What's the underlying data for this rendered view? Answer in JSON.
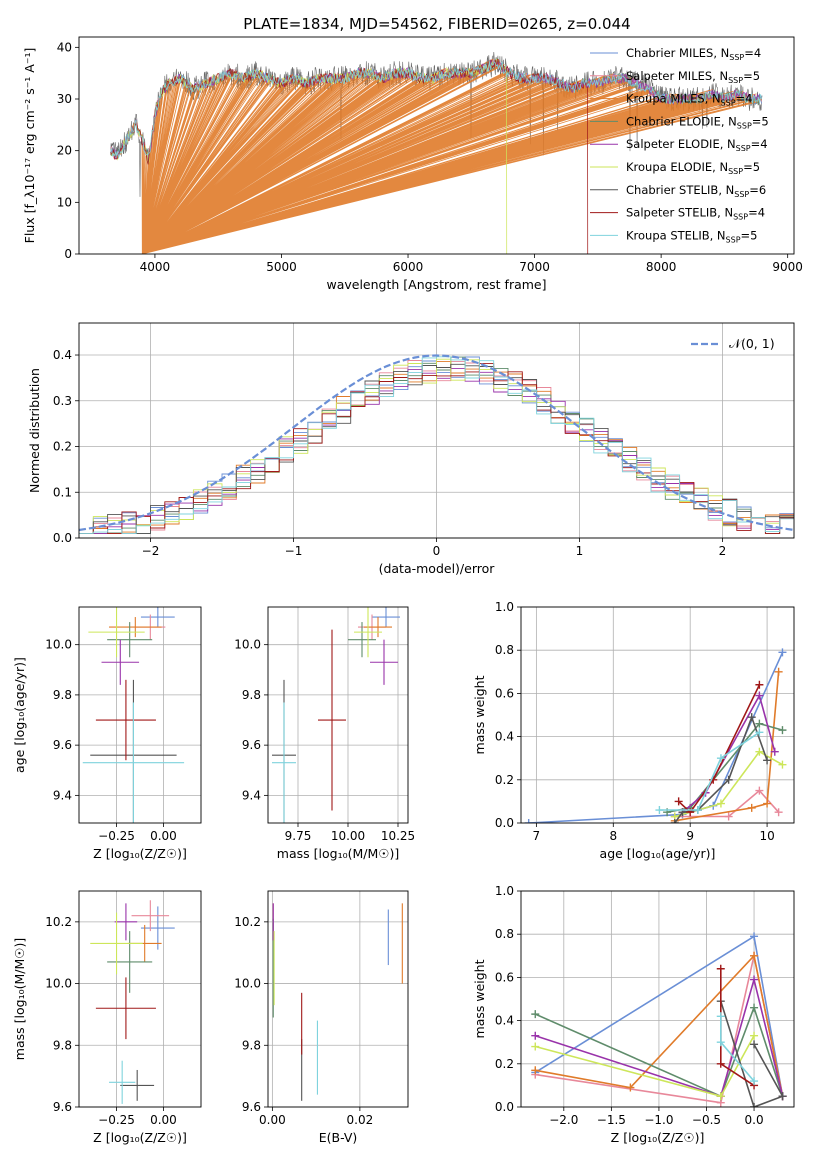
{
  "figure": {
    "title": "PLATE=1834, MJD=54562, FIBERID=0265, z=0.044"
  },
  "series_styles": [
    {
      "name": "Chabrier MILES",
      "nssp": "4",
      "color": "#6a8fd6"
    },
    {
      "name": "Salpeter MILES",
      "nssp": "5",
      "color": "#e8889a"
    },
    {
      "name": "Kroupa MILES",
      "nssp": "4",
      "color": "#e07b2a"
    },
    {
      "name": "Chabrier ELODIE",
      "nssp": "5",
      "color": "#5f8c6b"
    },
    {
      "name": "Salpeter ELODIE",
      "nssp": "4",
      "color": "#9933aa"
    },
    {
      "name": "Kroupa ELODIE",
      "nssp": "5",
      "color": "#cde65a"
    },
    {
      "name": "Chabrier STELIB",
      "nssp": "6",
      "color": "#555555"
    },
    {
      "name": "Salpeter STELIB",
      "nssp": "4",
      "color": "#a01818"
    },
    {
      "name": "Kroupa STELIB",
      "nssp": "5",
      "color": "#7fd3dd"
    }
  ],
  "chart_data": [
    {
      "id": "spectrum",
      "type": "line",
      "title": "PLATE=1834, MJD=54562, FIBERID=0265, z=0.044",
      "xlabel": "wavelength [Angstrom, rest frame]",
      "ylabel": "Flux [f_λ10⁻¹⁷ erg cm⁻² s⁻¹ A⁻¹]",
      "xlim": [
        3400,
        9050
      ],
      "ylim": [
        0,
        42
      ],
      "xticks": [
        4000,
        5000,
        6000,
        7000,
        8000,
        9000
      ],
      "yticks": [
        0,
        10,
        20,
        30,
        40
      ],
      "grid": false,
      "legend": "top-right",
      "continuum": {
        "x": [
          3650,
          3700,
          3750,
          3800,
          3850,
          3900,
          3950,
          4000,
          4050,
          4100,
          4200,
          4300,
          4400,
          4500,
          4600,
          4700,
          4800,
          4900,
          5000,
          5100,
          5200,
          5300,
          5400,
          5500,
          5600,
          5700,
          5800,
          5900,
          6000,
          6100,
          6200,
          6300,
          6400,
          6500,
          6600,
          6700,
          6800,
          6900,
          7000,
          7100,
          7200,
          7300,
          7400,
          7500,
          7600,
          7700,
          7800,
          7900,
          8000,
          8100,
          8200,
          8300,
          8400,
          8500,
          8600,
          8700,
          8800
        ],
        "y": [
          20,
          19,
          21,
          23,
          25,
          22,
          18,
          27,
          31,
          33,
          34,
          32,
          33,
          34,
          35,
          34,
          35,
          34,
          33,
          34,
          33,
          34,
          34,
          34,
          35,
          35,
          34,
          35,
          35,
          34,
          34,
          35,
          35,
          35,
          36,
          37,
          35,
          34,
          34,
          34,
          33,
          32,
          33,
          33,
          34,
          34,
          33,
          32,
          30,
          30,
          30,
          30,
          31,
          30,
          31,
          30,
          30
        ]
      },
      "dropouts": [
        {
          "series": "Kroupa MILES",
          "x": 3900,
          "y": 0
        },
        {
          "series": "Kroupa ELODIE",
          "x": 6780,
          "y": 0
        },
        {
          "series": "Salpeter STELIB",
          "x": 7420,
          "y": 0
        }
      ]
    },
    {
      "id": "residuals",
      "type": "bar",
      "xlabel": "(data-model)/error",
      "ylabel": "Normed distribution",
      "xlim": [
        -2.5,
        2.5
      ],
      "ylim": [
        0,
        0.47
      ],
      "xticks": [
        -2,
        -1,
        0,
        1,
        2
      ],
      "yticks": [
        0.0,
        0.1,
        0.2,
        0.3,
        0.4
      ],
      "grid": true,
      "legend": "top-right",
      "reference_label": "𝒩(0, 1)",
      "reference_color": "#6a8fd6",
      "bin_width": 0.1,
      "bin_start": -2.5
    },
    {
      "id": "age-vs-Z",
      "type": "scatter",
      "xlabel": "Z [log₁₀(Z/Z☉)]",
      "ylabel": "age  [log₁₀(age/yr)]",
      "xlim": [
        -0.45,
        0.2
      ],
      "ylim": [
        9.29,
        10.15
      ],
      "xticks": [
        -0.25,
        0.0
      ],
      "yticks": [
        9.4,
        9.6,
        9.8,
        10.0
      ],
      "grid": true,
      "points": [
        {
          "series": "Chabrier MILES",
          "x": -0.03,
          "y": 10.11,
          "xerr": 0.09,
          "yerr": 0.04
        },
        {
          "series": "Salpeter MILES",
          "x": -0.07,
          "y": 10.07,
          "xerr": 0.08,
          "yerr": 0.05
        },
        {
          "series": "Kroupa MILES",
          "x": -0.15,
          "y": 10.07,
          "xerr": 0.14,
          "yerr": 0.04
        },
        {
          "series": "Chabrier ELODIE",
          "x": -0.18,
          "y": 10.02,
          "xerr": 0.12,
          "yerr": 0.07
        },
        {
          "series": "Salpeter ELODIE",
          "x": -0.23,
          "y": 9.93,
          "xerr": 0.1,
          "yerr": 0.09
        },
        {
          "series": "Kroupa ELODIE",
          "x": -0.25,
          "y": 10.05,
          "xerr": 0.15,
          "yerr": 0.1
        },
        {
          "series": "Chabrier STELIB",
          "x": -0.16,
          "y": 9.56,
          "xerr": 0.23,
          "yerr": 0.3
        },
        {
          "series": "Salpeter STELIB",
          "x": -0.2,
          "y": 9.7,
          "xerr": 0.16,
          "yerr": 0.16
        },
        {
          "series": "Kroupa STELIB",
          "x": -0.16,
          "y": 9.53,
          "xerr": 0.27,
          "yerr": 0.24
        }
      ]
    },
    {
      "id": "age-vs-mass",
      "type": "scatter",
      "xlabel": "mass [log₁₀(M/M☉)]",
      "ylabel": "",
      "xlim": [
        9.6,
        10.3
      ],
      "ylim": [
        9.29,
        10.15
      ],
      "xticks": [
        9.75,
        10.0,
        10.25
      ],
      "yticks": [
        9.4,
        9.6,
        9.8,
        10.0
      ],
      "grid": true,
      "points": [
        {
          "series": "Chabrier MILES",
          "x": 10.19,
          "y": 10.11,
          "xerr": 0.07,
          "yerr": 0.04
        },
        {
          "series": "Salpeter MILES",
          "x": 10.12,
          "y": 10.07,
          "xerr": 0.07,
          "yerr": 0.05
        },
        {
          "series": "Kroupa MILES",
          "x": 10.15,
          "y": 10.07,
          "xerr": 0.07,
          "yerr": 0.04
        },
        {
          "series": "Chabrier ELODIE",
          "x": 10.07,
          "y": 10.02,
          "xerr": 0.07,
          "yerr": 0.07
        },
        {
          "series": "Salpeter ELODIE",
          "x": 10.18,
          "y": 9.93,
          "xerr": 0.07,
          "yerr": 0.09
        },
        {
          "series": "Kroupa ELODIE",
          "x": 10.1,
          "y": 10.05,
          "xerr": 0.07,
          "yerr": 0.1
        },
        {
          "series": "Chabrier STELIB",
          "x": 9.68,
          "y": 9.56,
          "xerr": 0.06,
          "yerr": 0.3
        },
        {
          "series": "Salpeter STELIB",
          "x": 9.92,
          "y": 9.7,
          "xerr": 0.07,
          "yerr": 0.36
        },
        {
          "series": "Kroupa STELIB",
          "x": 9.68,
          "y": 9.53,
          "xerr": 0.06,
          "yerr": 0.24
        }
      ]
    },
    {
      "id": "weight-vs-age",
      "type": "line",
      "xlabel": "age  [log₁₀(age/yr)]",
      "ylabel": "mass weight",
      "xlim": [
        6.8,
        10.35
      ],
      "ylim": [
        0,
        1
      ],
      "xticks": [
        7,
        8,
        9,
        10
      ],
      "yticks": [
        0.0,
        0.2,
        0.4,
        0.6,
        0.8,
        1.0
      ],
      "grid": true,
      "series": [
        {
          "name": "Chabrier MILES",
          "x": [
            6.9,
            8.9,
            9.3,
            10.2
          ],
          "y": [
            0.0,
            0.04,
            0.08,
            0.79
          ]
        },
        {
          "name": "Salpeter MILES",
          "x": [
            8.8,
            9.5,
            9.9,
            10.15
          ],
          "y": [
            0.03,
            0.03,
            0.15,
            0.05
          ]
        },
        {
          "name": "Kroupa MILES",
          "x": [
            8.8,
            9.8,
            10.0,
            10.15
          ],
          "y": [
            0.01,
            0.07,
            0.09,
            0.7
          ]
        },
        {
          "name": "Chabrier ELODIE",
          "x": [
            8.7,
            9.0,
            9.9,
            10.2
          ],
          "y": [
            0.05,
            0.07,
            0.46,
            0.43
          ]
        },
        {
          "name": "Salpeter ELODIE",
          "x": [
            8.9,
            9.2,
            9.9,
            10.1
          ],
          "y": [
            0.05,
            0.14,
            0.59,
            0.33
          ]
        },
        {
          "name": "Kroupa ELODIE",
          "x": [
            8.8,
            9.4,
            9.9,
            10.2
          ],
          "y": [
            0.03,
            0.09,
            0.33,
            0.27
          ]
        },
        {
          "name": "Chabrier STELIB",
          "x": [
            8.8,
            8.9,
            9.1,
            9.5,
            9.8,
            10.0
          ],
          "y": [
            0.0,
            0.05,
            0.06,
            0.2,
            0.49,
            0.29
          ]
        },
        {
          "name": "Salpeter STELIB",
          "x": [
            8.85,
            9.0,
            9.3,
            9.9
          ],
          "y": [
            0.1,
            0.05,
            0.2,
            0.64
          ]
        },
        {
          "name": "Kroupa STELIB",
          "x": [
            8.6,
            9.1,
            9.4,
            9.9
          ],
          "y": [
            0.06,
            0.06,
            0.3,
            0.42
          ]
        }
      ]
    },
    {
      "id": "mass-vs-Z",
      "type": "scatter",
      "xlabel": "Z [log₁₀(Z/Z☉)]",
      "ylabel": "mass [log₁₀(M/M☉)]",
      "xlim": [
        -0.45,
        0.2
      ],
      "ylim": [
        9.6,
        10.3
      ],
      "xticks": [
        -0.25,
        0.0
      ],
      "yticks": [
        9.6,
        9.8,
        10.0,
        10.2
      ],
      "grid": true,
      "points": [
        {
          "series": "Chabrier MILES",
          "x": -0.03,
          "y": 10.18,
          "xerr": 0.09,
          "yerr": 0.07
        },
        {
          "series": "Salpeter MILES",
          "x": -0.07,
          "y": 10.22,
          "xerr": 0.1,
          "yerr": 0.05
        },
        {
          "series": "Kroupa MILES",
          "x": -0.1,
          "y": 10.13,
          "xerr": 0.09,
          "yerr": 0.06
        },
        {
          "series": "Chabrier ELODIE",
          "x": -0.18,
          "y": 10.07,
          "xerr": 0.12,
          "yerr": 0.1
        },
        {
          "series": "Salpeter ELODIE",
          "x": -0.2,
          "y": 10.2,
          "xerr": 0.06,
          "yerr": 0.06
        },
        {
          "series": "Kroupa ELODIE",
          "x": -0.25,
          "y": 10.13,
          "xerr": 0.14,
          "yerr": 0.1
        },
        {
          "series": "Chabrier STELIB",
          "x": -0.14,
          "y": 9.67,
          "xerr": 0.09,
          "yerr": 0.05
        },
        {
          "series": "Salpeter STELIB",
          "x": -0.2,
          "y": 9.92,
          "xerr": 0.16,
          "yerr": 0.1
        },
        {
          "series": "Kroupa STELIB",
          "x": -0.22,
          "y": 9.68,
          "xerr": 0.07,
          "yerr": 0.07
        }
      ]
    },
    {
      "id": "mass-vs-ebv",
      "type": "scatter",
      "xlabel": "E(B-V)",
      "ylabel": "",
      "xlim": [
        -0.001,
        0.031
      ],
      "ylim": [
        9.6,
        10.3
      ],
      "xticks": [
        0.0,
        0.02
      ],
      "yticks": [
        9.6,
        9.8,
        10.0,
        10.2
      ],
      "grid": true,
      "points": [
        {
          "series": "Chabrier MILES",
          "x": 0.0265,
          "y": 10.15,
          "xerr": 0,
          "yerr": 0.09
        },
        {
          "series": "Salpeter MILES",
          "x": 0.0002,
          "y": 10.2,
          "xerr": 0,
          "yerr": 0.06
        },
        {
          "series": "Kroupa MILES",
          "x": 0.0297,
          "y": 10.13,
          "xerr": 0,
          "yerr": 0.13
        },
        {
          "series": "Chabrier ELODIE",
          "x": 0.0002,
          "y": 10.05,
          "xerr": 0,
          "yerr": 0.16
        },
        {
          "series": "Salpeter ELODIE",
          "x": 0.0002,
          "y": 10.2,
          "xerr": 0,
          "yerr": 0.06
        },
        {
          "series": "Kroupa ELODIE",
          "x": 0.0004,
          "y": 10.05,
          "xerr": 0,
          "yerr": 0.12
        },
        {
          "series": "Chabrier STELIB",
          "x": 0.0067,
          "y": 9.72,
          "xerr": 0,
          "yerr": 0.1
        },
        {
          "series": "Salpeter STELIB",
          "x": 0.0067,
          "y": 9.87,
          "xerr": 0,
          "yerr": 0.1
        },
        {
          "series": "Kroupa STELIB",
          "x": 0.0103,
          "y": 9.76,
          "xerr": 0,
          "yerr": 0.12
        }
      ]
    },
    {
      "id": "weight-vs-Z",
      "type": "line",
      "xlabel": "Z [log₁₀(Z/Z☉)]",
      "ylabel": "mass weight",
      "xlim": [
        -2.45,
        0.42
      ],
      "ylim": [
        0,
        1
      ],
      "xticks": [
        -2.0,
        -1.5,
        -1.0,
        -0.5,
        0.0
      ],
      "yticks": [
        0.0,
        0.2,
        0.4,
        0.6,
        0.8,
        1.0
      ],
      "grid": true,
      "series": [
        {
          "name": "Chabrier MILES",
          "x": [
            -2.3,
            0.0,
            0.3
          ],
          "y": [
            0.16,
            0.79,
            0.05
          ]
        },
        {
          "name": "Salpeter MILES",
          "x": [
            -2.3,
            -0.35,
            0.0,
            0.3
          ],
          "y": [
            0.15,
            0.02,
            0.7,
            0.05
          ]
        },
        {
          "name": "Kroupa MILES",
          "x": [
            -2.3,
            -1.3,
            0.0,
            0.3
          ],
          "y": [
            0.17,
            0.09,
            0.7,
            0.05
          ]
        },
        {
          "name": "Chabrier ELODIE",
          "x": [
            -2.3,
            -0.35,
            0.0,
            0.3
          ],
          "y": [
            0.43,
            0.05,
            0.46,
            0.05
          ]
        },
        {
          "name": "Salpeter ELODIE",
          "x": [
            -2.3,
            -0.35,
            0.0,
            0.3
          ],
          "y": [
            0.33,
            0.05,
            0.59,
            0.05
          ]
        },
        {
          "name": "Kroupa ELODIE",
          "x": [
            -2.3,
            -0.35,
            0.0
          ],
          "y": [
            0.28,
            0.05,
            0.33
          ]
        },
        {
          "name": "Chabrier STELIB",
          "x": [
            -0.35,
            0.0,
            0.3,
            0.0
          ],
          "y": [
            0.49,
            0.0,
            0.05,
            0.29
          ]
        },
        {
          "name": "Salpeter STELIB",
          "x": [
            -0.35,
            -0.35,
            0.0
          ],
          "y": [
            0.64,
            0.2,
            0.1
          ]
        },
        {
          "name": "Kroupa STELIB",
          "x": [
            -0.35,
            -0.35,
            0.0
          ],
          "y": [
            0.42,
            0.3,
            0.12
          ]
        }
      ]
    }
  ]
}
